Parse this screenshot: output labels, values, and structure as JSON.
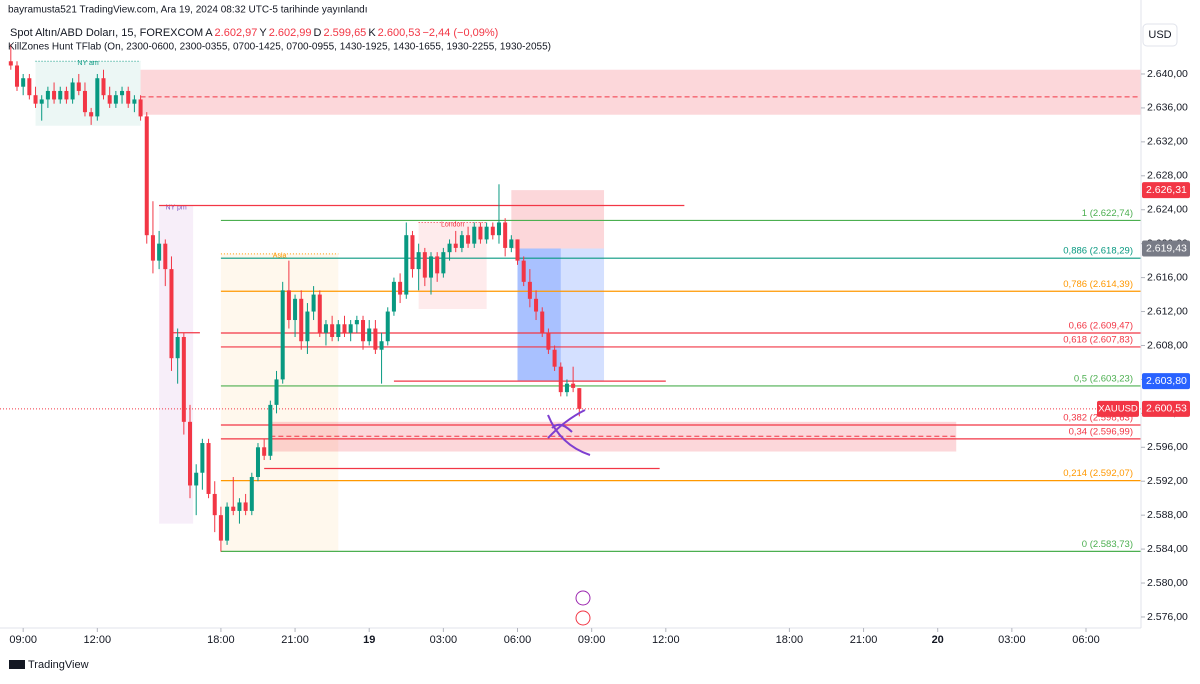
{
  "header": {
    "published": "bayramusta521 TradingView.com, Ara 19, 2024 08:32 UTC-5 tarihinde yayınlandı",
    "footer": "TradingView",
    "currency": "USD"
  },
  "chart_data": {
    "type": "candlestick",
    "title": "Spot Altın/ABD Doları, 15, FOREXCOM",
    "ohlc_legend": [
      {
        "key": "A",
        "value": "2.602,97"
      },
      {
        "key": "Y",
        "value": "2.602,99"
      },
      {
        "key": "D",
        "value": "2.599,65"
      },
      {
        "key": "K",
        "value": "2.600,53"
      }
    ],
    "change": "−2,44 (−0,09%)",
    "indicator": "KillZones Hunt TFlab (On, 2300-0600, 2300-0355, 0700-1425, 0700-0955, 1430-1925, 1430-1655, 1930-2255, 1930-2055)",
    "x": [
      -2,
      -1,
      0,
      1,
      2,
      3,
      4,
      5,
      6,
      7,
      8,
      9,
      10,
      11,
      12,
      13,
      14,
      15,
      16,
      17,
      18,
      19,
      20,
      21,
      22,
      23,
      24,
      25,
      26,
      27,
      28,
      29,
      30,
      31,
      32,
      33,
      34,
      35,
      36,
      37,
      38,
      39,
      40,
      41,
      42,
      43,
      44,
      45,
      46,
      47,
      48,
      49,
      50,
      51,
      52,
      53,
      54,
      55,
      56,
      57,
      58,
      59,
      60,
      61,
      62,
      63,
      64,
      65,
      66,
      67,
      68,
      69,
      70,
      71,
      72,
      73,
      74,
      75,
      76,
      77,
      78,
      79,
      80,
      81,
      82,
      83,
      84,
      85,
      86,
      87,
      88,
      89,
      90
    ],
    "open": [
      2641.5,
      2641.0,
      2638.5,
      2639.5,
      2637.5,
      2636.5,
      2637.0,
      2638.0,
      2637.0,
      2638.0,
      2637.0,
      2639.0,
      2638.0,
      2635.5,
      2635.0,
      2639.5,
      2637.5,
      2636.5,
      2637.5,
      2638.0,
      2636.5,
      2637.0,
      2635.0,
      2621.0,
      2618.0,
      2620.0,
      2617.0,
      2606.5,
      2609.0,
      2599.0,
      2591.5,
      2593.0,
      2596.5,
      2590.5,
      2588.0,
      2585.0,
      2589.0,
      2588.5,
      2589.5,
      2588.5,
      2592.5,
      2596.0,
      2595.0,
      2601.0,
      2604.0,
      2614.5,
      2611.0,
      2613.5,
      2608.5,
      2612.0,
      2614.0,
      2609.5,
      2610.5,
      2609.0,
      2610.5,
      2609.5,
      2610.5,
      2611.0,
      2608.5,
      2610.0,
      2607.5,
      2608.5,
      2612.0,
      2615.5,
      2614.0,
      2621.0,
      2617.0,
      2619.0,
      2616.0,
      2618.5,
      2616.5,
      2619.0,
      2620.0,
      2619.5,
      2621.0,
      2620.0,
      2622.0,
      2620.5,
      2622.0,
      2621.0,
      2622.5,
      2619.5,
      2620.5,
      2618.0,
      2615.5,
      2613.5,
      2612.0,
      2609.5,
      2607.5,
      2605.5,
      2602.5,
      2603.5,
      2602.97
    ],
    "high": [
      2643.5,
      2641.5,
      2640,
      2640,
      2638.5,
      2637.5,
      2638.5,
      2639,
      2638.5,
      2638.5,
      2639.5,
      2640,
      2639,
      2636,
      2640,
      2640.5,
      2638.5,
      2638,
      2638.5,
      2638.5,
      2637.5,
      2637.5,
      2635.5,
      2625,
      2621.5,
      2620.5,
      2618.5,
      2610,
      2609.5,
      2601,
      2594,
      2597,
      2597,
      2592,
      2589,
      2589.5,
      2592.5,
      2590,
      2590.5,
      2593,
      2596.5,
      2597,
      2601.5,
      2605,
      2615.5,
      2618,
      2614,
      2614.5,
      2613,
      2615,
      2614.5,
      2611,
      2611.5,
      2611,
      2611.5,
      2611,
      2611.5,
      2611.5,
      2611,
      2611,
      2609.5,
      2612.5,
      2616,
      2616.5,
      2622.5,
      2621.5,
      2620,
      2619.5,
      2619,
      2619,
      2619.5,
      2620.5,
      2621.5,
      2621.5,
      2622,
      2622.5,
      2622.5,
      2622.5,
      2622.5,
      2627,
      2623,
      2621,
      2620.5,
      2618.5,
      2617,
      2614.5,
      2612.5,
      2610,
      2608,
      2606,
      2604,
      2605.5,
      2602.99
    ],
    "low": [
      2640.5,
      2638,
      2637.5,
      2637,
      2636,
      2634.5,
      2636,
      2636.5,
      2636.5,
      2636.5,
      2636.5,
      2637.5,
      2635,
      2634,
      2634.5,
      2637,
      2636,
      2636,
      2636.5,
      2636,
      2635.5,
      2634.5,
      2620,
      2616.5,
      2617,
      2615,
      2605,
      2603.5,
      2597.5,
      2590,
      2588,
      2591,
      2590,
      2586,
      2583.7,
      2584.5,
      2588,
      2587,
      2588,
      2588,
      2592,
      2594.5,
      2594.5,
      2600,
      2603.5,
      2610,
      2609,
      2607.5,
      2607,
      2611,
      2609,
      2608,
      2608.5,
      2608.5,
      2609,
      2608.5,
      2609.5,
      2607.5,
      2608,
      2607,
      2603.5,
      2608,
      2611.5,
      2613,
      2613.5,
      2616,
      2614.5,
      2615,
      2614,
      2615.5,
      2616,
      2618,
      2619,
      2619,
      2619.5,
      2619.5,
      2620,
      2620,
      2620.5,
      2620,
      2618.5,
      2619,
      2617.5,
      2615,
      2612.5,
      2611,
      2609,
      2607,
      2605,
      2602,
      2602,
      2602.5,
      2599.65
    ],
    "close": [
      2641,
      2638.5,
      2639.5,
      2637.5,
      2636.5,
      2637,
      2638,
      2637,
      2638,
      2637,
      2639,
      2638,
      2635.5,
      2635,
      2639.5,
      2637.5,
      2636.5,
      2637.5,
      2638,
      2636.5,
      2637,
      2635,
      2621,
      2618,
      2620,
      2617,
      2606.5,
      2609,
      2599,
      2591.5,
      2593,
      2596.5,
      2590.5,
      2588,
      2585,
      2589,
      2588.5,
      2589.5,
      2588.5,
      2592.5,
      2596,
      2595,
      2601,
      2604,
      2614.5,
      2611,
      2613.5,
      2608.5,
      2612,
      2614,
      2609.5,
      2610.5,
      2609,
      2610.5,
      2609.5,
      2610.5,
      2611,
      2608.5,
      2610,
      2607.5,
      2608.5,
      2612,
      2615.5,
      2614,
      2621,
      2617,
      2619,
      2616,
      2618.5,
      2616.5,
      2619,
      2620,
      2619.5,
      2621,
      2620,
      2622,
      2620.5,
      2622,
      2621,
      2622.5,
      2619.5,
      2620.5,
      2618,
      2615.5,
      2613.5,
      2612,
      2609.5,
      2607.5,
      2605.5,
      2602.5,
      2603.5,
      2603,
      2600.53
    ],
    "up_color": "#089981",
    "down_color": "#f23645",
    "xlim": [
      -3.75,
      180.9
    ],
    "xticks": [
      {
        "value": 0,
        "label": "09:00"
      },
      {
        "value": 12,
        "label": "12:00"
      },
      {
        "value": 32,
        "label": "18:00"
      },
      {
        "value": 44,
        "label": "21:00"
      },
      {
        "value": 56,
        "label": "19"
      },
      {
        "value": 68,
        "label": "03:00"
      },
      {
        "value": 80,
        "label": "06:00"
      },
      {
        "value": 92,
        "label": "09:00"
      },
      {
        "value": 104,
        "label": "12:00"
      },
      {
        "value": 124,
        "label": "18:00"
      },
      {
        "value": 136,
        "label": "21:00"
      },
      {
        "value": 148,
        "label": "20"
      },
      {
        "value": 160,
        "label": "03:00"
      },
      {
        "value": 172,
        "label": "06:00"
      }
    ],
    "ylim": [
      2574.7,
      2648.72
    ],
    "yticks": [
      {
        "value": 2576,
        "label": "2.576,00"
      },
      {
        "value": 2580,
        "label": "2.580,00"
      },
      {
        "value": 2584,
        "label": "2.584,00"
      },
      {
        "value": 2588,
        "label": "2.588,00"
      },
      {
        "value": 2592,
        "label": "2.592,00"
      },
      {
        "value": 2596,
        "label": "2.596,00"
      },
      {
        "value": 2600,
        "label": "2.600,00"
      },
      {
        "value": 2604,
        "label": "2.604,00"
      },
      {
        "value": 2608,
        "label": "2.608,00"
      },
      {
        "value": 2612,
        "label": "2.612,00"
      },
      {
        "value": 2616,
        "label": "2.616,00"
      },
      {
        "value": 2620,
        "label": "2.620,00"
      },
      {
        "value": 2624,
        "label": "2.624,00"
      },
      {
        "value": 2628,
        "label": "2.628,00"
      },
      {
        "value": 2632,
        "label": "2.632,00"
      },
      {
        "value": 2636,
        "label": "2.636,00"
      },
      {
        "value": 2640,
        "label": "2.640,00"
      }
    ],
    "zones": [
      {
        "x0": 19,
        "x1": 180.9,
        "y0": 2635.2,
        "y1": 2640.5,
        "fill": "rgba(242,54,69,0.2)",
        "mid": 2637.3
      },
      {
        "x0": 2,
        "x1": 19,
        "y0": 2633.9,
        "y1": 2641.5,
        "fill": "rgba(8,153,129,0.08)",
        "label": "NY am",
        "color": "#089981"
      },
      {
        "x0": 22,
        "x1": 27.5,
        "y0": 2587,
        "y1": 2624.5,
        "fill": "rgba(156,39,176,0.08)",
        "label": "NY pm",
        "color": "#7e57c2"
      },
      {
        "x0": 32,
        "x1": 51,
        "y0": 2583.7,
        "y1": 2618.8,
        "fill": "rgba(255,152,0,0.07)",
        "label": "Asia",
        "color": "#ff9800"
      },
      {
        "x0": 64,
        "x1": 75,
        "y0": 2612.3,
        "y1": 2622.5,
        "fill": "rgba(242,54,69,0.1)",
        "label": "London",
        "color": "#f23645"
      },
      {
        "x0": 40,
        "x1": 151,
        "y0": 2595.5,
        "y1": 2599,
        "fill": "rgba(242,54,69,0.2)",
        "mid": 2597.3
      },
      {
        "x0": 79,
        "x1": 94,
        "y0": 2619.43,
        "y1": 2626.31,
        "fill": "rgba(242,54,69,0.2)"
      },
      {
        "x0": 80,
        "x1": 94,
        "y0": 2603.8,
        "y1": 2619.43,
        "fill": "rgba(41,98,255,0.2)"
      },
      {
        "x0": 80,
        "x1": 87,
        "y0": 2603.8,
        "y1": 2619.43,
        "fill": "rgba(41,98,255,0.25)"
      }
    ],
    "lines": [
      {
        "x0": 22,
        "x1": 107,
        "value": 2624.5
      },
      {
        "x0": 39,
        "x1": 103,
        "value": 2593.5
      },
      {
        "x0": 24,
        "x1": 28.6,
        "value": 2609.5
      },
      {
        "x0": 60,
        "x1": 104,
        "value": 2603.8
      }
    ],
    "fib_x0": 32,
    "fib_levels": [
      {
        "label": "1 (2.622,74)",
        "value": 2622.74,
        "color": "#4caf50"
      },
      {
        "label": "0,886 (2.618,29)",
        "value": 2618.29,
        "color": "#089981"
      },
      {
        "label": "0,786 (2.614,39)",
        "value": 2614.39,
        "color": "#ff9800"
      },
      {
        "label": "0,66 (2.609,47)",
        "value": 2609.47,
        "color": "#f23645"
      },
      {
        "label": "0,618 (2.607,83)",
        "value": 2607.83,
        "color": "#f23645"
      },
      {
        "label": "0,5 (2.603,23)",
        "value": 2603.23,
        "color": "#4caf50"
      },
      {
        "label": "0,382 (2.598,63)",
        "value": 2598.63,
        "color": "#f23645"
      },
      {
        "label": "0,34 (2.596,99)",
        "value": 2596.99,
        "color": "#f23645"
      },
      {
        "label": "0,214 (2.592,07)",
        "value": 2592.07,
        "color": "#ff9800"
      },
      {
        "label": "0 (2.583,73)",
        "value": 2583.73,
        "color": "#4caf50"
      }
    ],
    "price_tags": [
      {
        "value": 2626.31,
        "label": "2.626,31",
        "color": "#f23645"
      },
      {
        "value": 2619.43,
        "label": "2.619,43",
        "color": "#787b86"
      },
      {
        "value": 2603.8,
        "label": "2.603,80",
        "color": "#2962ff"
      },
      {
        "value": 2600.53,
        "label": "2.600,53",
        "color": "#f23645",
        "name": "XAUUSD"
      }
    ]
  }
}
